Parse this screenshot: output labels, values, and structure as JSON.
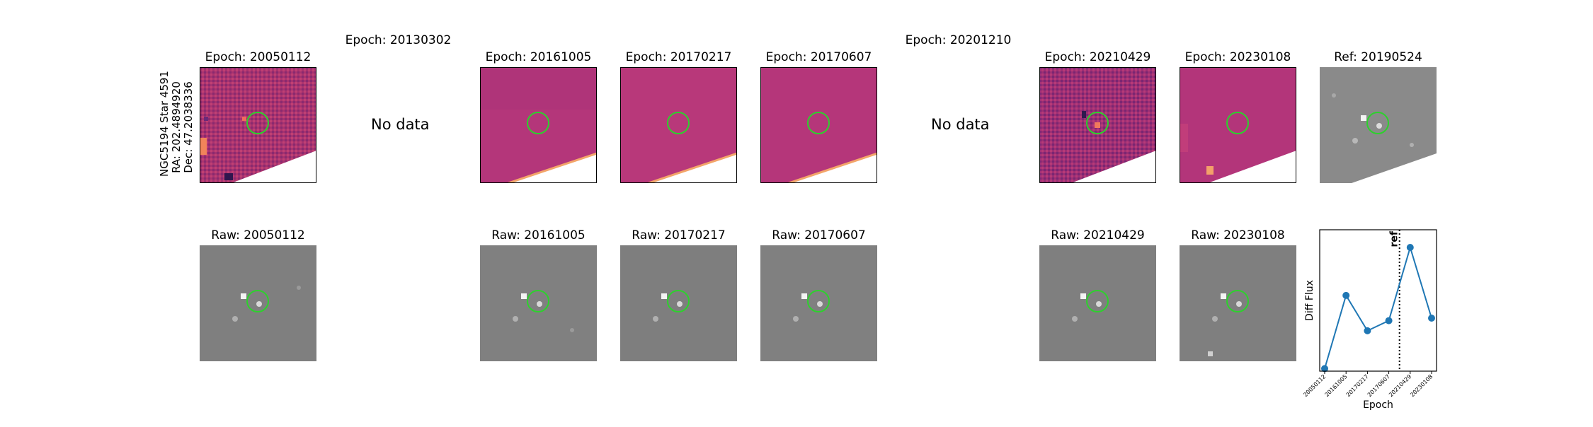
{
  "figure": {
    "star_label": {
      "line1": "NGC5194 Star 4591",
      "line2": "RA: 202.4894920",
      "line3": "Dec: 47.2038336"
    }
  },
  "diff_row": [
    {
      "title": "Epoch: 20050112",
      "state": "image"
    },
    {
      "title": "Epoch: 20130302",
      "state": "no_data",
      "no_data_text": "No data"
    },
    {
      "title": "Epoch: 20161005",
      "state": "image"
    },
    {
      "title": "Epoch: 20170217",
      "state": "image"
    },
    {
      "title": "Epoch: 20170607",
      "state": "image"
    },
    {
      "title": "Epoch: 20201210",
      "state": "no_data",
      "no_data_text": "No data"
    },
    {
      "title": "Epoch: 20210429",
      "state": "image"
    },
    {
      "title": "Epoch: 20230108",
      "state": "image"
    },
    {
      "title": "Ref: 20190524",
      "state": "reference"
    }
  ],
  "raw_row": [
    {
      "title": "Raw: 20050112"
    },
    {
      "title": "Raw: 20161005"
    },
    {
      "title": "Raw: 20170217"
    },
    {
      "title": "Raw: 20170607"
    },
    {
      "title": "Raw: 20210429"
    },
    {
      "title": "Raw: 20230108"
    }
  ],
  "colors": {
    "ring": "#2dd12d",
    "line": "#1f77b4",
    "magma_mid": "#b5367a",
    "gray_bg": "#7f7f7f"
  },
  "chart_data": {
    "type": "line",
    "xlabel": "Epoch",
    "ylabel": "Diff Flux",
    "x": [
      "20050112",
      "20161005",
      "20170217",
      "20170607",
      "20210429",
      "20230108"
    ],
    "values": [
      0.0,
      0.58,
      0.3,
      0.38,
      0.96,
      0.4
    ],
    "ylim": [
      -0.02,
      1.1
    ],
    "ref_line": {
      "label": "ref",
      "x_between": [
        "20170607",
        "20210429"
      ],
      "style": "dotted"
    },
    "grid": false
  }
}
